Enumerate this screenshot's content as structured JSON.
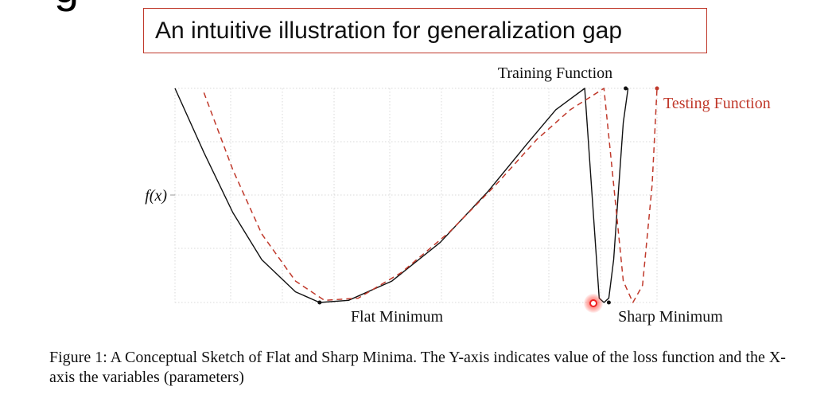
{
  "slide": {
    "title_fragment": "g",
    "subtitle": "An intuitive illustration for generalization gap",
    "caption": "Figure 1: A Conceptual Sketch of Flat and Sharp Minima. The Y-axis indicates value of the loss function and the X-axis the variables (parameters)"
  },
  "chart_data": {
    "type": "line",
    "ylabel": "f(x)",
    "xlabel": "",
    "grid": true,
    "annotations": [
      {
        "text": "Training Function",
        "color": "#111111"
      },
      {
        "text": "Testing Function",
        "color": "#c0392b"
      },
      {
        "text": "Flat Minimum",
        "color": "#111111"
      },
      {
        "text": "Sharp Minimum",
        "color": "#111111"
      }
    ],
    "series": [
      {
        "name": "Training Function",
        "color": "#111111",
        "style": "solid",
        "x": [
          0.0,
          0.06,
          0.12,
          0.18,
          0.25,
          0.3,
          0.36,
          0.45,
          0.55,
          0.65,
          0.73,
          0.79,
          0.85,
          0.88,
          0.89,
          0.9,
          0.91,
          0.92,
          0.93,
          0.94
        ],
        "y": [
          1.0,
          0.7,
          0.42,
          0.2,
          0.05,
          0.0,
          0.01,
          0.1,
          0.28,
          0.52,
          0.74,
          0.9,
          1.0,
          0.02,
          0.0,
          0.02,
          0.2,
          0.52,
          0.84,
          1.0
        ]
      },
      {
        "name": "Testing Function",
        "color": "#c0392b",
        "style": "dashed",
        "x": [
          0.06,
          0.12,
          0.18,
          0.25,
          0.31,
          0.38,
          0.47,
          0.57,
          0.67,
          0.75,
          0.82,
          0.89,
          0.91,
          0.93,
          0.95,
          0.97,
          0.99,
          1.0
        ],
        "y": [
          0.98,
          0.62,
          0.32,
          0.1,
          0.01,
          0.02,
          0.14,
          0.33,
          0.56,
          0.76,
          0.9,
          1.0,
          0.55,
          0.1,
          0.0,
          0.08,
          0.55,
          1.0
        ]
      }
    ],
    "endpoints": [
      {
        "x": 0.935,
        "y": 1.0,
        "color": "#111111"
      },
      {
        "x": 1.0,
        "y": 1.0,
        "color": "#c0392b"
      }
    ],
    "minima_markers": [
      {
        "x": 0.3,
        "y": 0.0,
        "color": "#111111"
      },
      {
        "x": 0.9,
        "y": 0.0,
        "color": "#111111"
      }
    ]
  }
}
